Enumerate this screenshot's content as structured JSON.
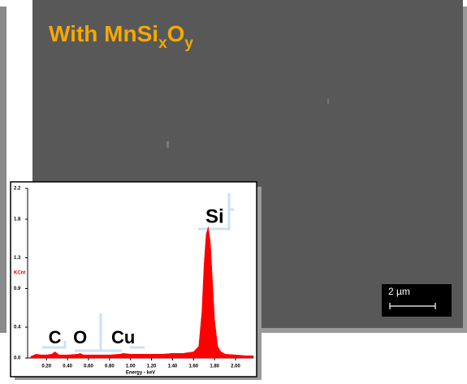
{
  "title": {
    "main": "With MnSi",
    "sub1": "x",
    "main2": "O",
    "sub2": "y"
  },
  "scale_bar": {
    "label": "2 µm"
  },
  "chart_data": {
    "type": "area",
    "x_label": "Energy - keV",
    "y_label": "KCnt",
    "color": "#ff0000",
    "xlim": [
      0.02,
      2.17
    ],
    "ylim": [
      0,
      2.2
    ],
    "xticks": [
      {
        "value": 0.2,
        "label": "0.20"
      },
      {
        "value": 0.4,
        "label": "0.40"
      },
      {
        "value": 0.6,
        "label": "0.60"
      },
      {
        "value": 0.8,
        "label": "0.80"
      },
      {
        "value": 1.0,
        "label": "1.00"
      },
      {
        "value": 1.2,
        "label": "1.20"
      },
      {
        "value": 1.4,
        "label": "1.40"
      },
      {
        "value": 1.6,
        "label": "1.60"
      },
      {
        "value": 1.8,
        "label": "1.80"
      },
      {
        "value": 2.0,
        "label": "2.00"
      }
    ],
    "yticks": [
      {
        "value": 0,
        "label": "0.0"
      },
      0.4,
      0.9,
      1.3,
      1.8,
      2.2
    ],
    "x": [
      0.05,
      0.1,
      0.15,
      0.2,
      0.25,
      0.28,
      0.32,
      0.4,
      0.5,
      0.52,
      0.55,
      0.6,
      0.7,
      0.8,
      0.9,
      0.93,
      1.0,
      1.1,
      1.2,
      1.3,
      1.4,
      1.5,
      1.6,
      1.65,
      1.68,
      1.7,
      1.72,
      1.74,
      1.76,
      1.78,
      1.8,
      1.83,
      1.86,
      1.9,
      2.0,
      2.1,
      2.17
    ],
    "values": [
      0.02,
      0.05,
      0.04,
      0.04,
      0.05,
      0.08,
      0.04,
      0.04,
      0.05,
      0.06,
      0.04,
      0.04,
      0.04,
      0.04,
      0.05,
      0.06,
      0.05,
      0.05,
      0.05,
      0.05,
      0.06,
      0.06,
      0.08,
      0.15,
      0.6,
      1.2,
      1.6,
      1.7,
      1.5,
      1.0,
      0.5,
      0.15,
      0.08,
      0.05,
      0.04,
      0.03,
      0.03
    ],
    "peak_labels": [
      {
        "label": "C",
        "x": 0.28
      },
      {
        "label": "O",
        "x": 0.52
      },
      {
        "label": "Cu",
        "x": 0.93
      },
      {
        "label": "Si",
        "x": 1.74
      }
    ]
  }
}
